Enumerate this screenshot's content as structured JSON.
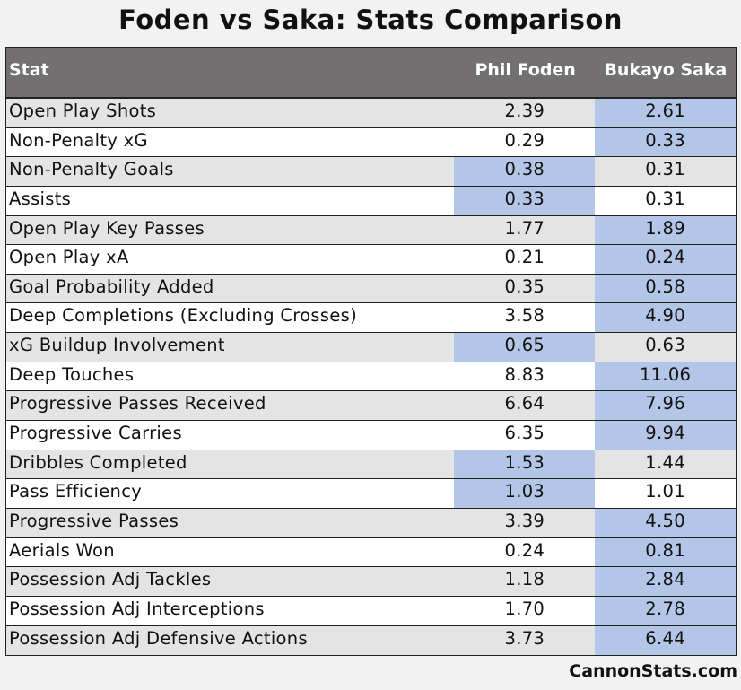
{
  "title": "Foden vs Saka: Stats Comparison",
  "footer": "CannonStats.com",
  "colors": {
    "header_bg": "#727070",
    "highlight": "#b4c6e7",
    "row_alt": "#e4e4e4"
  },
  "chart_data": {
    "type": "table",
    "title": "Foden vs Saka: Stats Comparison",
    "columns": [
      "Stat",
      "Phil Foden",
      "Bukayo Saka"
    ],
    "rows": [
      {
        "stat": "Open Play Shots",
        "foden": "2.39",
        "saka": "2.61",
        "higher": "saka"
      },
      {
        "stat": "Non-Penalty xG",
        "foden": "0.29",
        "saka": "0.33",
        "higher": "saka"
      },
      {
        "stat": "Non-Penalty Goals",
        "foden": "0.38",
        "saka": "0.31",
        "higher": "foden"
      },
      {
        "stat": "Assists",
        "foden": "0.33",
        "saka": "0.31",
        "higher": "foden"
      },
      {
        "stat": "Open Play Key Passes",
        "foden": "1.77",
        "saka": "1.89",
        "higher": "saka"
      },
      {
        "stat": "Open Play xA",
        "foden": "0.21",
        "saka": "0.24",
        "higher": "saka"
      },
      {
        "stat": "Goal Probability Added",
        "foden": "0.35",
        "saka": "0.58",
        "higher": "saka"
      },
      {
        "stat": "Deep Completions (Excluding Crosses)",
        "foden": "3.58",
        "saka": "4.90",
        "higher": "saka"
      },
      {
        "stat": "xG Buildup Involvement",
        "foden": "0.65",
        "saka": "0.63",
        "higher": "foden"
      },
      {
        "stat": "Deep Touches",
        "foden": "8.83",
        "saka": "11.06",
        "higher": "saka"
      },
      {
        "stat": "Progressive Passes Received",
        "foden": "6.64",
        "saka": "7.96",
        "higher": "saka"
      },
      {
        "stat": "Progressive Carries",
        "foden": "6.35",
        "saka": "9.94",
        "higher": "saka"
      },
      {
        "stat": "Dribbles Completed",
        "foden": "1.53",
        "saka": "1.44",
        "higher": "foden"
      },
      {
        "stat": "Pass Efficiency",
        "foden": "1.03",
        "saka": "1.01",
        "higher": "foden"
      },
      {
        "stat": "Progressive Passes",
        "foden": "3.39",
        "saka": "4.50",
        "higher": "saka"
      },
      {
        "stat": "Aerials Won",
        "foden": "0.24",
        "saka": "0.81",
        "higher": "saka"
      },
      {
        "stat": "Possession Adj Tackles",
        "foden": "1.18",
        "saka": "2.84",
        "higher": "saka"
      },
      {
        "stat": "Possession Adj Interceptions",
        "foden": "1.70",
        "saka": "2.78",
        "higher": "saka"
      },
      {
        "stat": "Possession Adj Defensive Actions",
        "foden": "3.73",
        "saka": "6.44",
        "higher": "saka"
      }
    ]
  }
}
